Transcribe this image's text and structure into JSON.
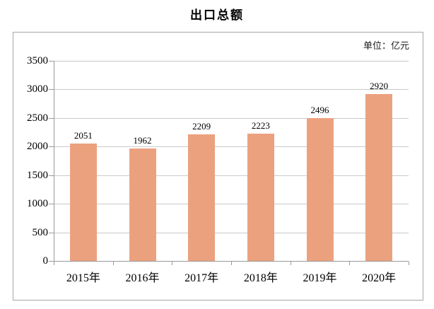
{
  "chart_data": {
    "type": "bar",
    "title": "出口总额",
    "unit_label": "单位：亿元",
    "categories": [
      "2015年",
      "2016年",
      "2017年",
      "2018年",
      "2019年",
      "2020年"
    ],
    "values": [
      2051,
      1962,
      2209,
      2223,
      2496,
      2920
    ],
    "xlabel": "",
    "ylabel": "",
    "ylim": [
      0,
      3500
    ],
    "yticks": [
      0,
      500,
      1000,
      1500,
      2000,
      2500,
      3000,
      3500
    ],
    "grid": "horizontal",
    "legend_position": "none",
    "bar_labels_shown": true,
    "colors": {
      "bar_fill": "#ECA17E",
      "gridline": "#C9C9C9",
      "axis": "#999999",
      "frame_border": "#A6A6A6",
      "text": "#000000",
      "background": "#FFFFFF"
    }
  }
}
